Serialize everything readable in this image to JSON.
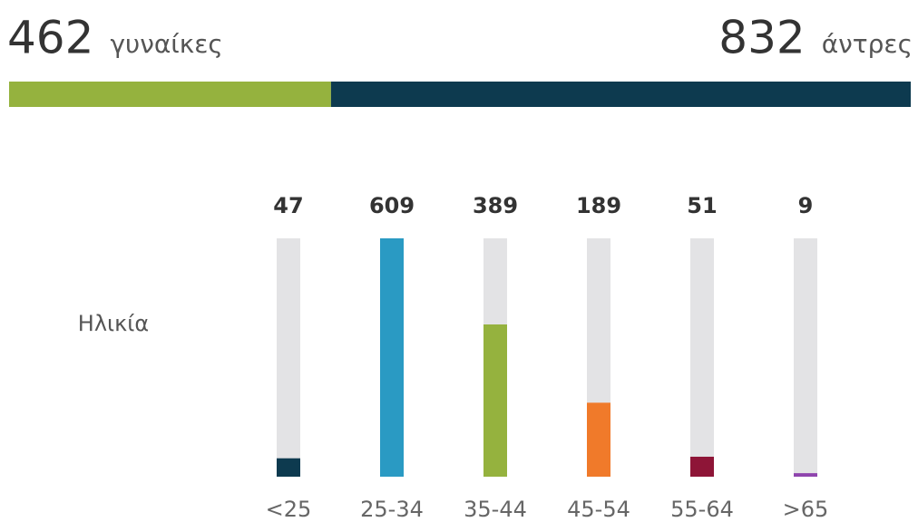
{
  "chart_data": [
    {
      "type": "share_bar",
      "series": [
        {
          "name": "γυναίκες",
          "color": "#95b23e",
          "values": [
            462
          ]
        },
        {
          "name": "άντρες",
          "color": "#0d3a4f",
          "values": [
            832
          ]
        }
      ]
    },
    {
      "type": "bar",
      "y_label": "Ηλικία",
      "categories": [
        "<25",
        "25-34",
        "35-44",
        "45-54",
        "55-64",
        ">65"
      ],
      "values": [
        47,
        609,
        389,
        189,
        51,
        9
      ],
      "colors": [
        "#0d3a4f",
        "#2a9ac3",
        "#95b23e",
        "#f07a2a",
        "#8e1537",
        "#8e44ad"
      ],
      "ylim": [
        0,
        609
      ]
    }
  ]
}
